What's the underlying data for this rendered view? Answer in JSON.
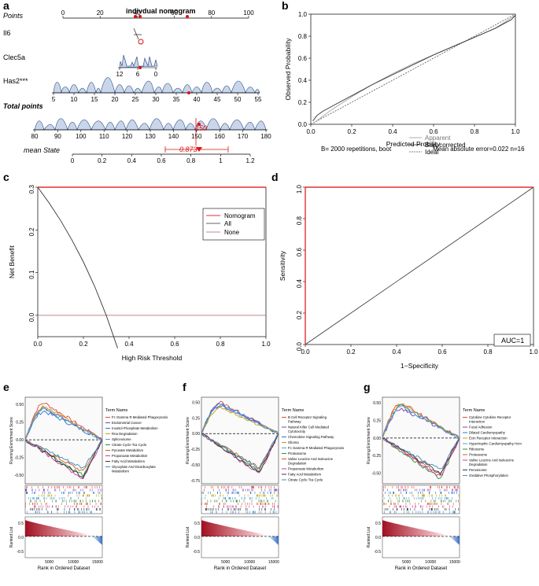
{
  "figure": {
    "panel_letters": [
      "a",
      "b",
      "c",
      "d",
      "e",
      "f",
      "g"
    ]
  },
  "chart_data": [
    {
      "panel": "a",
      "type": "nomogram",
      "title": "indivdual nomogram",
      "rows": [
        {
          "name": "Points",
          "ticks": [
            "0",
            "20",
            "40",
            "60",
            "80",
            "100"
          ],
          "values": [
            0,
            20,
            40,
            60,
            80,
            100
          ],
          "range": [
            0,
            100
          ],
          "bold_italic": false
        },
        {
          "name": "Il6",
          "ticks": [],
          "values": [],
          "range": [
            0,
            100
          ],
          "bold_italic": false
        },
        {
          "name": "Clec5a",
          "ticks": [
            "12",
            "6",
            "0"
          ],
          "values": [
            12,
            6,
            0
          ],
          "range": [
            0,
            12
          ],
          "bold_italic": false
        },
        {
          "name": "Has2***",
          "ticks": [
            "5",
            "10",
            "15",
            "20",
            "25",
            "30",
            "35",
            "40",
            "45",
            "50",
            "55"
          ],
          "values": [
            5,
            10,
            15,
            20,
            25,
            30,
            35,
            40,
            45,
            50,
            55
          ],
          "range": [
            5,
            55
          ],
          "bold_italic": false
        },
        {
          "name": "Total points",
          "ticks": [
            "80",
            "90",
            "100",
            "110",
            "120",
            "130",
            "140",
            "150",
            "160",
            "170",
            "180"
          ],
          "values": [
            80,
            90,
            100,
            110,
            120,
            130,
            140,
            150,
            160,
            170,
            180
          ],
          "range": [
            80,
            180
          ],
          "bold_italic": true
        },
        {
          "name": "mean State",
          "ticks": [
            "0",
            "0.2",
            "0.4",
            "0.6",
            "0.8",
            "1",
            "1.2"
          ],
          "values": [
            0,
            0.2,
            0.4,
            0.6,
            0.8,
            1,
            1.2
          ],
          "range": [
            0,
            1.2
          ],
          "bold_italic": true
        }
      ],
      "total_points_value": "150",
      "prediction_value": "0.873"
    },
    {
      "panel": "b",
      "type": "line",
      "title": "",
      "xlabel": "Predicted Probility",
      "ylabel": "Observed Probability",
      "xlim": [
        0,
        1
      ],
      "ylim": [
        0,
        1
      ],
      "xticks": [
        "0.0",
        "0.2",
        "0.4",
        "0.6",
        "0.8",
        "1.0"
      ],
      "yticks": [
        "0.0",
        "0.2",
        "0.4",
        "0.6",
        "0.8",
        "1.0"
      ],
      "legend": [
        "Apparent",
        "Bias-corrected",
        "Ideal"
      ],
      "footer_left": "B= 2000 repetitions, boot",
      "footer_right": "Mean absolute error=0.022 n=16",
      "series": [
        {
          "name": "Apparent",
          "x": [
            0.02,
            0.05,
            0.1,
            0.2,
            0.3,
            0.4,
            0.5,
            0.6,
            0.7,
            0.8,
            0.9,
            0.95,
            1.0
          ],
          "y": [
            0.02,
            0.06,
            0.13,
            0.25,
            0.36,
            0.46,
            0.55,
            0.63,
            0.71,
            0.79,
            0.87,
            0.93,
            0.99
          ]
        },
        {
          "name": "Bias-corrected",
          "x": [
            0.01,
            0.03,
            0.06,
            0.1,
            0.2,
            0.3,
            0.4,
            0.5,
            0.6,
            0.7,
            0.8,
            0.9,
            0.95,
            0.98,
            1.0
          ],
          "y": [
            0.03,
            0.08,
            0.12,
            0.16,
            0.26,
            0.36,
            0.45,
            0.54,
            0.63,
            0.71,
            0.79,
            0.87,
            0.92,
            0.95,
            0.99
          ]
        },
        {
          "name": "Ideal",
          "x": [
            0,
            1
          ],
          "y": [
            0,
            1
          ]
        }
      ]
    },
    {
      "panel": "c",
      "type": "line",
      "title": "",
      "xlabel": "High Risk Threshold",
      "ylabel": "Net Benefit",
      "xlim": [
        0,
        1
      ],
      "ylim": [
        -0.05,
        0.3
      ],
      "xticks": [
        "0.0",
        "0.2",
        "0.4",
        "0.6",
        "0.8",
        "1.0"
      ],
      "yticks": [
        "0.0",
        "0.1",
        "0.2",
        "0.3"
      ],
      "legend": [
        "Nomogram",
        "All",
        "None"
      ],
      "series": [
        {
          "name": "Nomogram",
          "x": [
            0,
            1
          ],
          "y": [
            0.3,
            0.3
          ]
        },
        {
          "name": "All",
          "x": [
            0,
            0.05,
            0.1,
            0.15,
            0.2,
            0.25,
            0.3,
            0.35
          ],
          "y": [
            0.3,
            0.263,
            0.222,
            0.176,
            0.125,
            0.067,
            0.0,
            -0.077
          ]
        },
        {
          "name": "None",
          "x": [
            0,
            1
          ],
          "y": [
            0,
            0
          ]
        }
      ]
    },
    {
      "panel": "d",
      "type": "line",
      "title": "",
      "xlabel": "1−Specificity",
      "ylabel": "Sensitivity",
      "xlim": [
        0,
        1
      ],
      "ylim": [
        0,
        1
      ],
      "xticks": [
        "0.0",
        "0.2",
        "0.4",
        "0.6",
        "0.8",
        "1.0"
      ],
      "yticks": [
        "0.0",
        "0.2",
        "0.4",
        "0.6",
        "0.8",
        "1.0"
      ],
      "annotation": "AUC=1",
      "series": [
        {
          "name": "ROC",
          "x": [
            0,
            0,
            1
          ],
          "y": [
            0,
            1,
            1
          ]
        },
        {
          "name": "Reference",
          "x": [
            0,
            1
          ],
          "y": [
            0,
            1
          ]
        }
      ]
    },
    {
      "panel": "e",
      "type": "line",
      "title": "",
      "ylabel_top": "Running Enrichment Score",
      "ylabel_bottom": "Ranked List",
      "xlabel": "Rank in Ordered Dataset",
      "xlim": [
        0,
        16000
      ],
      "xticks": [
        "5000",
        "10000",
        "15000"
      ],
      "yticks_top": [
        "0.50",
        "0.25",
        "0.00",
        "-0.25",
        "-0.50"
      ],
      "ylim_top": [
        -0.62,
        0.6
      ],
      "bottom_yticks": [
        "0.5",
        "0.0",
        "-0.5"
      ],
      "legend_title": "Term Name",
      "terms": [
        "Fc Gamma R Mediated Phagocytosis",
        "Endometrial Cancer",
        "Inositol Phosphate Metabolism",
        "Rna Degradation",
        "Spliceosome",
        "Citrate Cycle Tca Cycle",
        "Pyruvate Metabolism",
        "Propanoate Metabolism",
        "Fatty Acid Metabolism",
        "Glyoxylate And Dicarboxylate Metabolism"
      ],
      "colors": [
        "#e7463e",
        "#7b3fb0",
        "#2a6fd1",
        "#c8a400",
        "#4aa0d8",
        "#2e8b3c",
        "#d35c1d",
        "#c43d99",
        "#3b3b3b",
        "#3f88c5"
      ],
      "peaks": [
        0.52,
        0.45,
        0.4,
        0.48,
        0.43,
        -0.5,
        -0.45,
        -0.55,
        -0.52,
        -0.4
      ]
    },
    {
      "panel": "f",
      "type": "line",
      "title": "",
      "ylabel_top": "Running Enrichment Score",
      "ylabel_bottom": "Ranked List",
      "xlabel": "Rank in Ordered Dataset",
      "xlim": [
        0,
        16000
      ],
      "xticks": [
        "5000",
        "10000",
        "15000"
      ],
      "yticks_top": [
        "0.50",
        "0.25",
        "0.00",
        "-0.25",
        "-0.50",
        "-0.75"
      ],
      "ylim_top": [
        -0.8,
        0.58
      ],
      "bottom_yticks": [
        "0.5",
        "0.0",
        "-0.5"
      ],
      "legend_title": "Term Name",
      "terms": [
        "B Cell Receptor Signaling Pathway",
        "Natural Killer Cell Mediated Cytotoxicity",
        "Chemokine Signaling Pathway",
        "Glioma",
        "Fc Gamma R Mediated Phagocytosis",
        "Proteasome",
        "Valine Leucine And Isoleucine Degradation",
        "Propanoate Metabolism",
        "Fatty Acid Metabolism",
        "Citrate Cycle Tca Cycle"
      ],
      "colors": [
        "#e7463e",
        "#7b3fb0",
        "#2a6fd1",
        "#c8a400",
        "#4aa0d8",
        "#2e8b3c",
        "#d35c1d",
        "#c43d99",
        "#3b3b3b",
        "#3f88c5"
      ],
      "peaks": [
        0.5,
        0.45,
        0.48,
        0.42,
        0.46,
        -0.6,
        -0.55,
        -0.65,
        -0.62,
        -0.55
      ]
    },
    {
      "panel": "g",
      "type": "line",
      "title": "",
      "ylabel_top": "Running Enrichment Score",
      "ylabel_bottom": "Ranked List",
      "xlabel": "Rank in Ordered Dataset",
      "xlim": [
        0,
        16000
      ],
      "xticks": [
        "5000",
        "10000",
        "15000"
      ],
      "yticks_top": [
        "0.50",
        "0.25",
        "0.00",
        "-0.25",
        "-0.50"
      ],
      "ylim_top": [
        -0.65,
        0.58
      ],
      "bottom_yticks": [
        "0.5",
        "0.0",
        "-0.5"
      ],
      "legend_title": "Term Name",
      "terms": [
        "Cytokine Cytokine Receptor Interaction",
        "Focal Adhesion",
        "Dilated Cardiomyopathy",
        "Ecm Receptor Interaction",
        "Hypertrophic Cardiomyopathy Hcm",
        "Ribosome",
        "Proteasome",
        "Valine Leucine And Isoleucine Degradation",
        "Peroxisome",
        "Oxidative Phosphorylation"
      ],
      "colors": [
        "#e7463e",
        "#7b3fb0",
        "#2a6fd1",
        "#c8a400",
        "#4aa0d8",
        "#2e8b3c",
        "#d35c1d",
        "#c43d99",
        "#3b3b3b",
        "#3f88c5"
      ],
      "peaks": [
        0.5,
        0.42,
        0.46,
        0.48,
        0.44,
        -0.58,
        -0.52,
        -0.55,
        -0.5,
        -0.45
      ]
    }
  ]
}
